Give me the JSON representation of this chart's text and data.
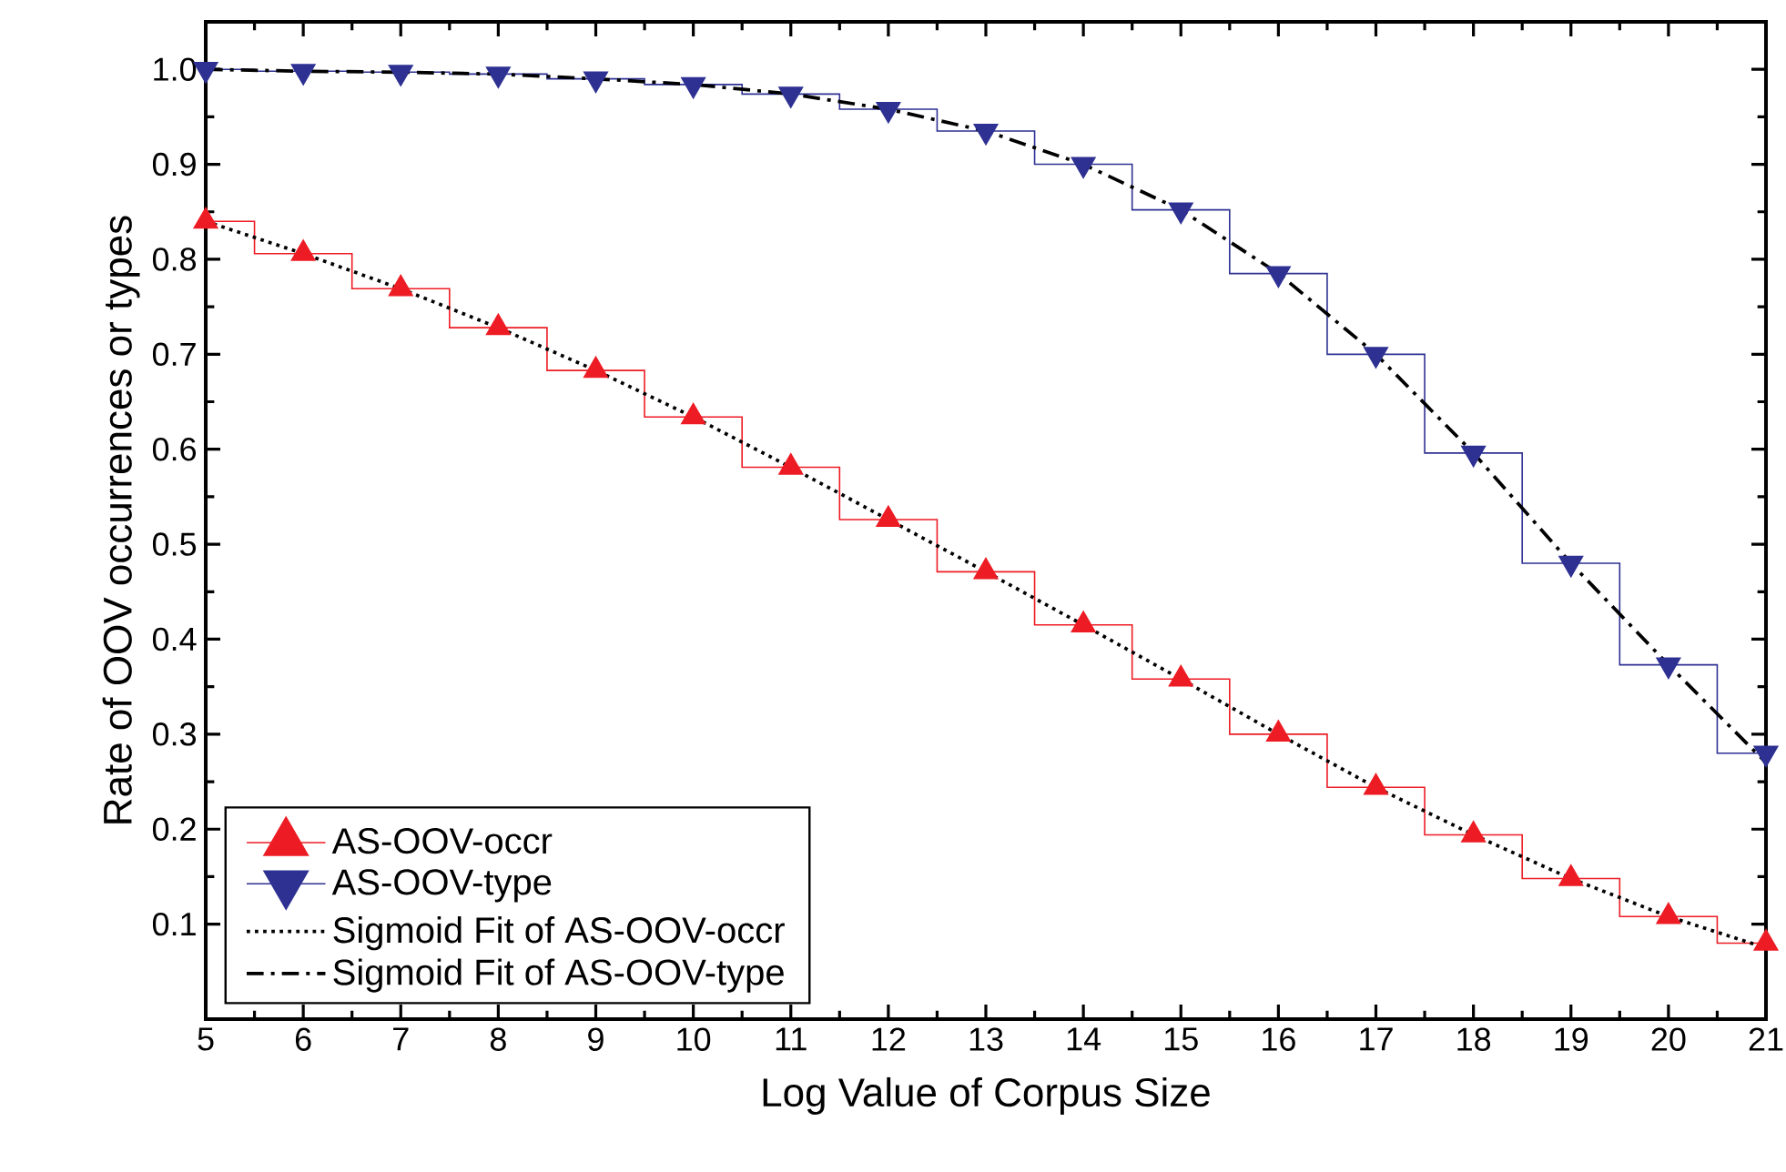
{
  "chart_data": {
    "type": "step",
    "xlabel": "Log Value of Corpus Size",
    "ylabel": "Rate of OOV occurrences or types",
    "x": [
      5,
      6,
      7,
      8,
      9,
      10,
      11,
      12,
      13,
      14,
      15,
      16,
      17,
      18,
      19,
      20,
      21
    ],
    "series": [
      {
        "name": "AS-OOV-occr",
        "color": "#ed1c24",
        "marker": "triangle",
        "values": [
          0.84,
          0.806,
          0.769,
          0.728,
          0.683,
          0.634,
          0.581,
          0.526,
          0.471,
          0.415,
          0.358,
          0.3,
          0.244,
          0.194,
          0.148,
          0.108,
          0.08
        ]
      },
      {
        "name": "AS-OOV-type",
        "color": "#2e3192",
        "marker": "triangle-down",
        "values": [
          1.0,
          0.998,
          0.997,
          0.995,
          0.99,
          0.984,
          0.974,
          0.958,
          0.935,
          0.9,
          0.852,
          0.785,
          0.7,
          0.596,
          0.48,
          0.373,
          0.28
        ]
      },
      {
        "name": "Sigmoid Fit of AS-OOV-occr",
        "type": "line",
        "color": "#000000",
        "marker": "none",
        "line_style": "dotted",
        "values": [
          0.84,
          0.806,
          0.769,
          0.728,
          0.683,
          0.634,
          0.581,
          0.526,
          0.471,
          0.415,
          0.358,
          0.3,
          0.244,
          0.194,
          0.148,
          0.108,
          0.075
        ]
      },
      {
        "name": "Sigmoid Fit of AS-OOV-type",
        "type": "line",
        "color": "#000000",
        "marker": "none",
        "line_style": "dashdot",
        "values": [
          1.0,
          0.998,
          0.997,
          0.995,
          0.99,
          0.984,
          0.974,
          0.958,
          0.935,
          0.9,
          0.852,
          0.785,
          0.7,
          0.596,
          0.48,
          0.373,
          0.27
        ]
      }
    ],
    "xlim": [
      5,
      21
    ],
    "ylim": [
      0,
      1.05
    ],
    "xticks": [
      5,
      6,
      7,
      8,
      9,
      10,
      11,
      12,
      13,
      14,
      15,
      16,
      17,
      18,
      19,
      20,
      21
    ],
    "yticks": [
      0.1,
      0.2,
      0.3,
      0.4,
      0.5,
      0.6,
      0.7,
      0.8,
      0.9,
      {
        "value": 1,
        "label": "1.0"
      }
    ],
    "grid": false,
    "legend": "bottom left"
  }
}
